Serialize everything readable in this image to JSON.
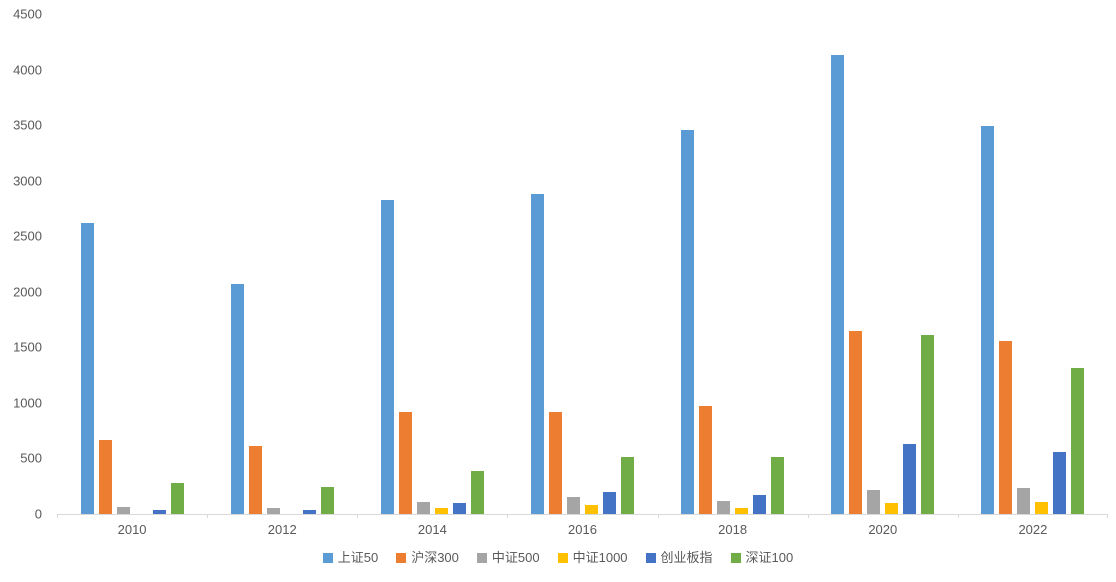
{
  "chart_data": {
    "type": "bar",
    "title": "",
    "xlabel": "",
    "ylabel": "",
    "categories": [
      "2010",
      "2012",
      "2014",
      "2016",
      "2018",
      "2020",
      "2022"
    ],
    "series": [
      {
        "name": "上证50",
        "color": "#5B9BD5",
        "values": [
          2620,
          2070,
          2830,
          2880,
          3460,
          4130,
          3490
        ]
      },
      {
        "name": "沪深300",
        "color": "#ED7D31",
        "values": [
          670,
          610,
          915,
          920,
          970,
          1650,
          1560
        ]
      },
      {
        "name": "中证500",
        "color": "#A5A5A5",
        "values": [
          60,
          50,
          110,
          150,
          115,
          215,
          230
        ]
      },
      {
        "name": "中证1000",
        "color": "#FFC000",
        "values": [
          0,
          0,
          50,
          80,
          50,
          100,
          105
        ]
      },
      {
        "name": "创业板指",
        "color": "#4472C4",
        "values": [
          40,
          40,
          100,
          200,
          175,
          630,
          560
        ]
      },
      {
        "name": "深证100",
        "color": "#70AD47",
        "values": [
          280,
          240,
          390,
          510,
          510,
          1610,
          1310
        ]
      }
    ],
    "ylim": [
      0,
      4500
    ],
    "yticks": [
      0,
      500,
      1000,
      1500,
      2000,
      2500,
      3000,
      3500,
      4000,
      4500
    ],
    "grid": false,
    "legend_position": "bottom",
    "axis_color": "#D9D9D9",
    "label_color": "#595959"
  }
}
